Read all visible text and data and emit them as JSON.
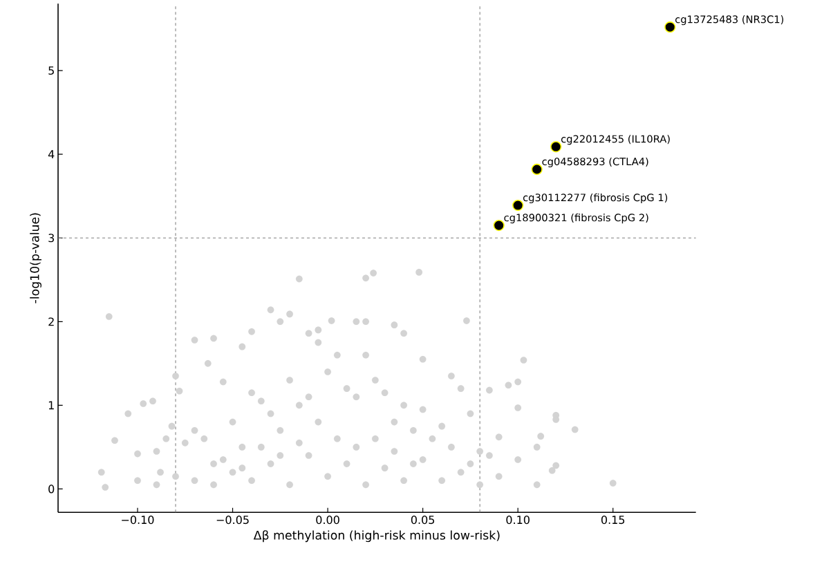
{
  "chart_data": {
    "type": "scatter",
    "xlabel": "Δβ methylation (high-risk minus low-risk)",
    "ylabel": "-log10(p-value)",
    "xlim": [
      -0.1418,
      0.1936
    ],
    "ylim": [
      -0.28,
      5.8
    ],
    "xticks": [
      {
        "value": -0.1,
        "label": "−0.10"
      },
      {
        "value": -0.05,
        "label": "−0.05"
      },
      {
        "value": 0.0,
        "label": "0.00"
      },
      {
        "value": 0.05,
        "label": "0.05"
      },
      {
        "value": 0.1,
        "label": "0.10"
      },
      {
        "value": 0.15,
        "label": "0.15"
      }
    ],
    "yticks": [
      0,
      1,
      2,
      3,
      4,
      5
    ],
    "marker": "circle",
    "grid": false,
    "series": [
      {
        "color": "#d3d3d3",
        "x": [
          -0.115,
          -0.119,
          -0.117,
          -0.112,
          -0.105,
          -0.097,
          -0.092,
          -0.08,
          -0.078,
          -0.07,
          -0.063,
          -0.06,
          -0.055,
          -0.045,
          -0.04,
          -0.03,
          -0.025,
          -0.02,
          -0.015,
          -0.01,
          -0.005,
          -0.005,
          0.002,
          0.02,
          0.024,
          0.048,
          0.015,
          0.02,
          0.035,
          0.04,
          0.05,
          0.073,
          0.065,
          0.07,
          0.085,
          0.095,
          0.1,
          0.103,
          0.1,
          0.11,
          0.112,
          0.12,
          0.12,
          0.13,
          0.15,
          0.12,
          0.118,
          0.11,
          0.1,
          0.09,
          0.085,
          0.08,
          0.075,
          0.075,
          -0.1,
          -0.09,
          -0.088,
          -0.085,
          -0.082,
          -0.075,
          -0.07,
          -0.065,
          -0.06,
          -0.05,
          -0.045,
          -0.04,
          -0.035,
          -0.03,
          -0.025,
          -0.02,
          -0.015,
          -0.01,
          -0.005,
          0.0,
          0.005,
          0.01,
          0.015,
          0.02,
          0.025,
          0.03,
          0.035,
          0.04,
          0.045,
          0.05,
          0.055,
          0.06,
          0.065,
          -0.1,
          -0.09,
          -0.08,
          -0.07,
          -0.06,
          -0.05,
          -0.04,
          -0.03,
          -0.02,
          -0.01,
          0.0,
          0.01,
          0.02,
          0.03,
          0.04,
          0.05,
          0.06,
          0.07,
          0.08,
          0.09,
          -0.035,
          -0.025,
          0.005,
          0.015,
          0.025,
          -0.015,
          0.035,
          -0.055,
          0.045,
          -0.045
        ],
        "values": [
          2.06,
          0.2,
          0.02,
          0.58,
          0.9,
          1.02,
          1.05,
          1.35,
          1.17,
          1.78,
          1.5,
          1.8,
          1.28,
          1.7,
          1.88,
          2.14,
          2.0,
          2.09,
          2.51,
          1.86,
          1.9,
          1.75,
          2.01,
          2.52,
          2.58,
          2.59,
          2.0,
          2.0,
          1.96,
          1.86,
          1.55,
          2.01,
          1.35,
          1.2,
          1.18,
          1.24,
          1.28,
          1.54,
          0.97,
          0.5,
          0.63,
          0.88,
          0.83,
          0.71,
          0.07,
          0.28,
          0.22,
          0.05,
          0.35,
          0.62,
          0.4,
          0.45,
          0.9,
          0.3,
          0.42,
          0.45,
          0.2,
          0.6,
          0.75,
          0.55,
          0.7,
          0.6,
          0.3,
          0.8,
          0.5,
          1.15,
          1.05,
          0.9,
          0.7,
          1.3,
          1.0,
          1.1,
          0.8,
          1.4,
          1.6,
          1.2,
          1.1,
          1.6,
          1.3,
          1.15,
          0.8,
          1.0,
          0.7,
          0.95,
          0.6,
          0.75,
          0.5,
          0.1,
          0.05,
          0.15,
          0.1,
          0.05,
          0.2,
          0.1,
          0.3,
          0.05,
          0.4,
          0.15,
          0.3,
          0.05,
          0.25,
          0.1,
          0.35,
          0.1,
          0.2,
          0.05,
          0.15,
          0.5,
          0.4,
          0.6,
          0.5,
          0.6,
          0.55,
          0.45,
          0.35,
          0.3,
          0.25
        ]
      },
      {
        "color": "#000000",
        "x": [
          0.18,
          0.12,
          0.11,
          0.1,
          0.09
        ],
        "values": [
          5.52,
          4.09,
          3.82,
          3.39,
          3.15
        ]
      }
    ],
    "ref_lines": [
      {
        "axis": "x",
        "value": -0.08,
        "color": "#808080",
        "line_style": "dashed"
      },
      {
        "axis": "x",
        "value": 0.08,
        "color": "#808080",
        "line_style": "dashed"
      },
      {
        "axis": "y",
        "value": 3,
        "color": "#808080",
        "line_style": "dashed"
      }
    ],
    "annotations": [
      {
        "text": "cg13725483 (NR3C1)",
        "x": 0.18,
        "y": 5.52
      },
      {
        "text": "cg22012455 (IL10RA)",
        "x": 0.12,
        "y": 4.09
      },
      {
        "text": "cg04588293 (CTLA4)",
        "x": 0.11,
        "y": 3.82
      },
      {
        "text": "cg30112277 (fibrosis CpG 1)",
        "x": 0.1,
        "y": 3.39
      },
      {
        "text": "cg18900321 (fibrosis CpG 2)",
        "x": 0.09,
        "y": 3.15
      }
    ]
  }
}
